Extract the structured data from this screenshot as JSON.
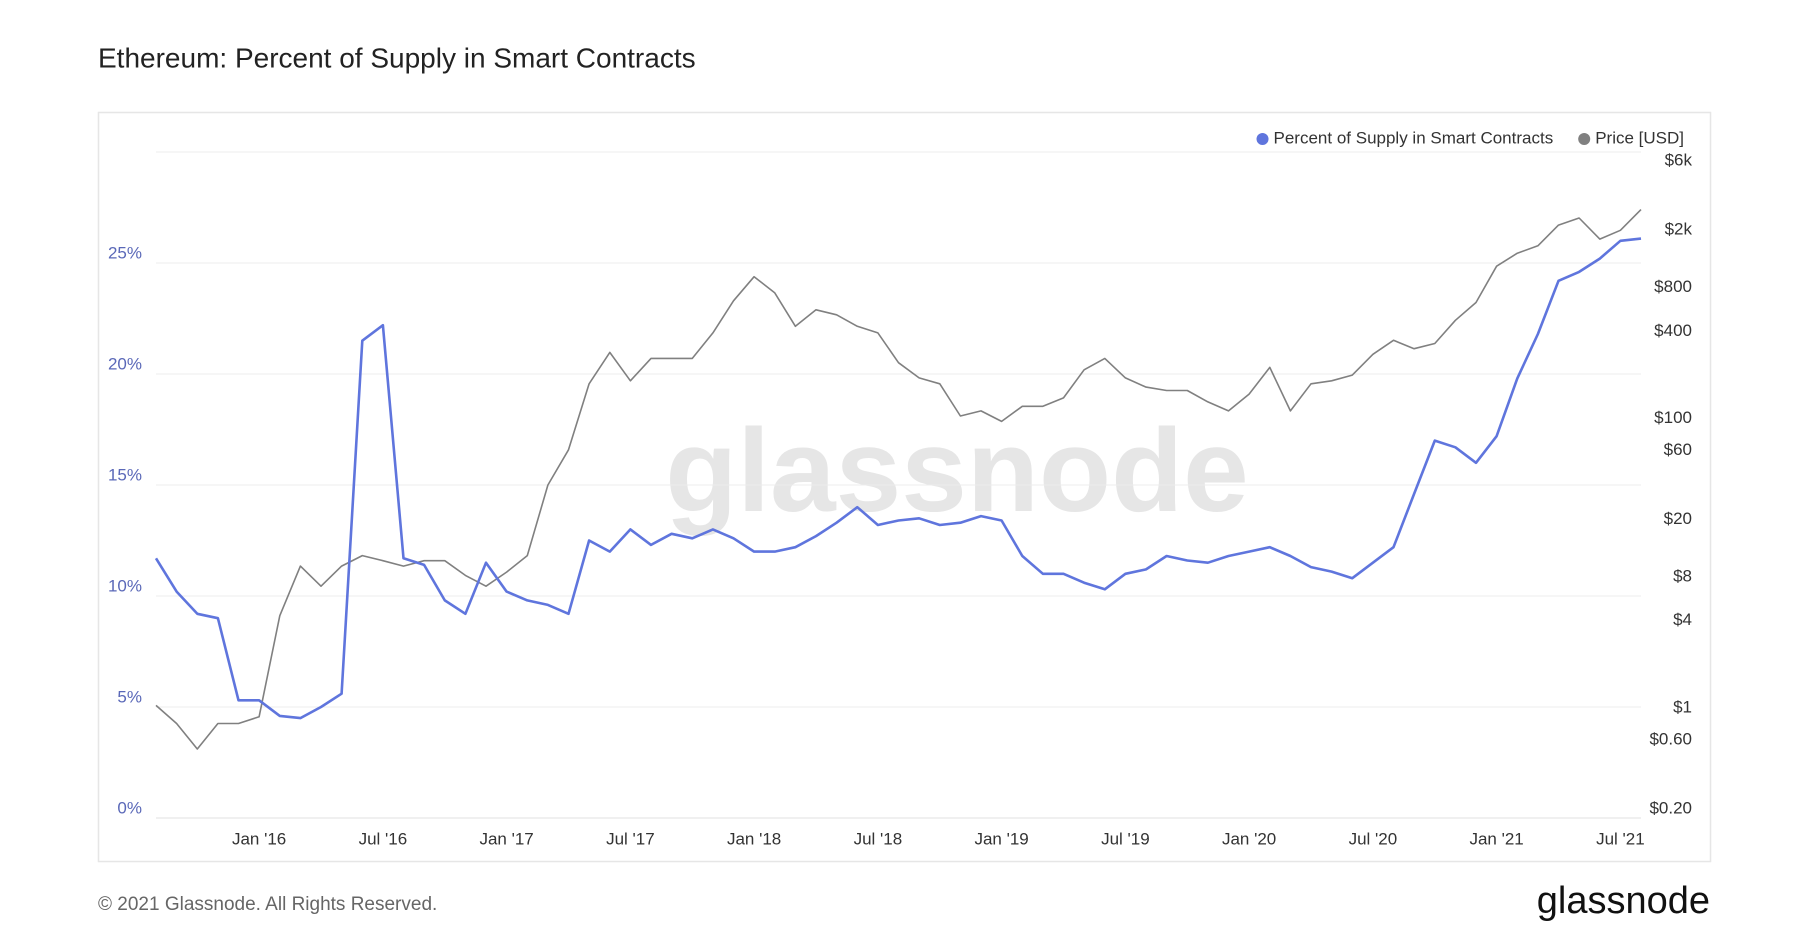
{
  "chart_data": {
    "type": "line",
    "title": "Ethereum: Percent of Supply in Smart Contracts",
    "watermark": "glassnode",
    "x": [
      "2015-08",
      "2015-09",
      "2015-10",
      "2015-11",
      "2015-12",
      "2016-01",
      "2016-02",
      "2016-03",
      "2016-04",
      "2016-05",
      "2016-06",
      "2016-07",
      "2016-08",
      "2016-09",
      "2016-10",
      "2016-11",
      "2016-12",
      "2017-01",
      "2017-02",
      "2017-03",
      "2017-04",
      "2017-05",
      "2017-06",
      "2017-07",
      "2017-08",
      "2017-09",
      "2017-10",
      "2017-11",
      "2017-12",
      "2018-01",
      "2018-02",
      "2018-03",
      "2018-04",
      "2018-05",
      "2018-06",
      "2018-07",
      "2018-08",
      "2018-09",
      "2018-10",
      "2018-11",
      "2018-12",
      "2019-01",
      "2019-02",
      "2019-03",
      "2019-04",
      "2019-05",
      "2019-06",
      "2019-07",
      "2019-08",
      "2019-09",
      "2019-10",
      "2019-11",
      "2019-12",
      "2020-01",
      "2020-02",
      "2020-03",
      "2020-04",
      "2020-05",
      "2020-06",
      "2020-07",
      "2020-08",
      "2020-09",
      "2020-10",
      "2020-11",
      "2020-12",
      "2021-01",
      "2021-02",
      "2021-03",
      "2021-04",
      "2021-05",
      "2021-06",
      "2021-07",
      "2021-08"
    ],
    "series": [
      {
        "name": "Percent of Supply in Smart Contracts",
        "color": "#5f75dd",
        "axis": "y",
        "values": [
          11.7,
          10.2,
          9.2,
          9.0,
          5.3,
          5.3,
          4.6,
          4.5,
          5.0,
          5.6,
          21.5,
          22.2,
          11.7,
          11.4,
          9.8,
          9.2,
          11.5,
          10.2,
          9.8,
          9.6,
          9.2,
          12.5,
          12.0,
          13.0,
          12.3,
          12.8,
          12.6,
          13.0,
          12.6,
          12.0,
          12.0,
          12.2,
          12.7,
          13.3,
          14.0,
          13.2,
          13.4,
          13.5,
          13.2,
          13.3,
          13.6,
          13.4,
          11.8,
          11.0,
          11.0,
          10.6,
          10.3,
          11.0,
          11.2,
          11.8,
          11.6,
          11.5,
          11.8,
          12.0,
          12.2,
          11.8,
          11.3,
          11.1,
          10.8,
          11.5,
          12.2,
          14.6,
          17.0,
          16.7,
          16.0,
          17.2,
          19.8,
          21.8,
          24.2,
          24.6,
          25.2,
          26.0,
          26.1
        ]
      },
      {
        "name": "Price [USD]",
        "color": "#808080",
        "axis": "y2",
        "values": [
          1.2,
          0.9,
          0.6,
          0.9,
          0.9,
          1.0,
          5,
          11,
          8,
          11,
          13,
          12,
          11,
          12,
          12,
          9.5,
          8,
          10,
          13,
          40,
          70,
          200,
          330,
          210,
          300,
          300,
          300,
          450,
          750,
          1100,
          850,
          500,
          650,
          600,
          500,
          450,
          280,
          220,
          200,
          120,
          130,
          110,
          140,
          140,
          160,
          250,
          300,
          220,
          190,
          180,
          180,
          150,
          130,
          170,
          260,
          130,
          200,
          210,
          230,
          320,
          400,
          350,
          380,
          550,
          730,
          1300,
          1600,
          1800,
          2500,
          2800,
          2000,
          2300,
          3200
        ]
      }
    ],
    "xlim": [
      "2015-08",
      "2021-08"
    ],
    "xticks": [
      {
        "value": "2016-01",
        "label": "Jan '16"
      },
      {
        "value": "2016-07",
        "label": "Jul '16"
      },
      {
        "value": "2017-01",
        "label": "Jan '17"
      },
      {
        "value": "2017-07",
        "label": "Jul '17"
      },
      {
        "value": "2018-01",
        "label": "Jan '18"
      },
      {
        "value": "2018-07",
        "label": "Jul '18"
      },
      {
        "value": "2019-01",
        "label": "Jan '19"
      },
      {
        "value": "2019-07",
        "label": "Jul '19"
      },
      {
        "value": "2020-01",
        "label": "Jan '20"
      },
      {
        "value": "2020-07",
        "label": "Jul '20"
      },
      {
        "value": "2021-01",
        "label": "Jan '21"
      },
      {
        "value": "2021-07",
        "label": "Jul '21"
      }
    ],
    "ylim": [
      0,
      30
    ],
    "yticks": [
      {
        "value": 0,
        "label": "0%"
      },
      {
        "value": 5,
        "label": "5%"
      },
      {
        "value": 10,
        "label": "10%"
      },
      {
        "value": 15,
        "label": "15%"
      },
      {
        "value": 20,
        "label": "20%"
      },
      {
        "value": 25,
        "label": "25%"
      },
      30
    ],
    "y2lim": [
      0.2,
      8000
    ],
    "y2_log": true,
    "y2ticks": [
      {
        "value": 0.2,
        "label": "$0.20"
      },
      {
        "value": 0.6,
        "label": "$0.60"
      },
      {
        "value": 1,
        "label": "$1"
      },
      {
        "value": 4,
        "label": "$4"
      },
      {
        "value": 8,
        "label": "$8"
      },
      {
        "value": 20,
        "label": "$20"
      },
      {
        "value": 60,
        "label": "$60"
      },
      {
        "value": 100,
        "label": "$100"
      },
      {
        "value": 400,
        "label": "$400"
      },
      {
        "value": 800,
        "label": "$800"
      },
      {
        "value": 2000,
        "label": "$2k"
      },
      {
        "value": 6000,
        "label": "$6k"
      }
    ],
    "grid": true,
    "legend": "top-right"
  },
  "footer": {
    "copyright": "© 2021 Glassnode. All Rights Reserved.",
    "logo": "glassnode"
  }
}
